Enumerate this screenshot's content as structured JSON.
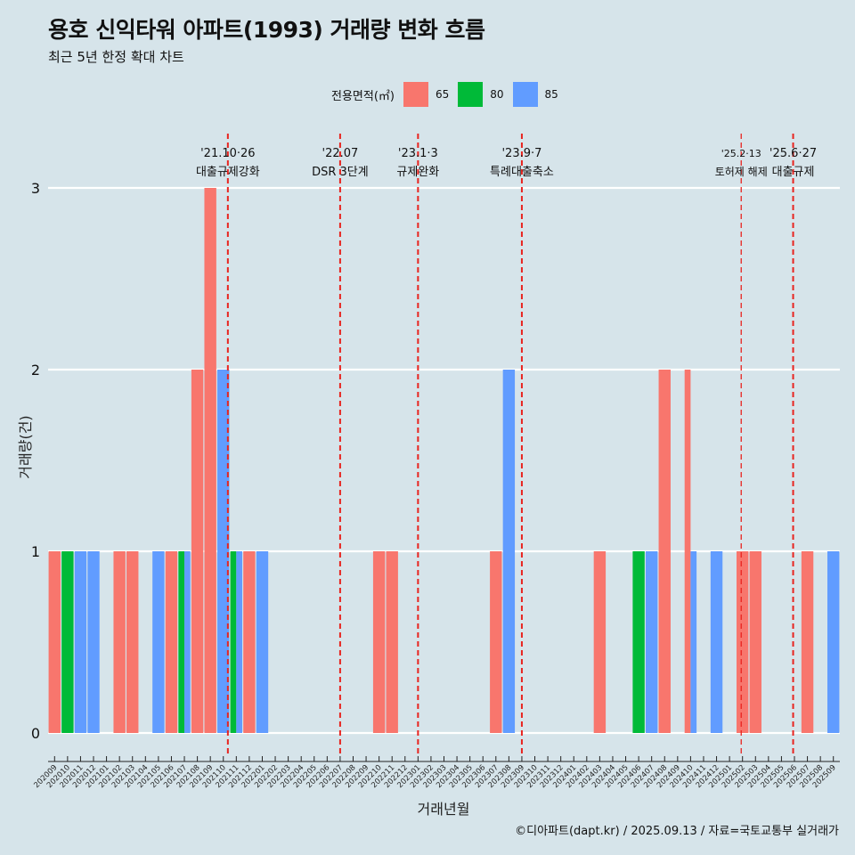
{
  "chart_data": {
    "type": "bar",
    "title": "용호 신익타워 아파트(1993) 거래량 변화 흐름",
    "subtitle": "최근 5년 한정 확대 차트",
    "xlabel": "거래년월",
    "ylabel": "거래량(건)",
    "ylim": [
      0,
      3
    ],
    "y_ticks": [
      "0",
      "1",
      "2",
      "3"
    ],
    "grid": true,
    "legend": {
      "title": "전용면적(㎡)",
      "position": "top",
      "items": [
        {
          "name": "65",
          "color": "#f8766d"
        },
        {
          "name": "80",
          "color": "#00ba38"
        },
        {
          "name": "85",
          "color": "#619cff"
        }
      ]
    },
    "categories": [
      "202009",
      "202010",
      "202011",
      "202012",
      "202101",
      "202102",
      "202103",
      "202104",
      "202105",
      "202106",
      "202107",
      "202108",
      "202109",
      "202110",
      "202111",
      "202112",
      "202201",
      "202202",
      "202203",
      "202204",
      "202205",
      "202206",
      "202207",
      "202208",
      "202209",
      "202210",
      "202211",
      "202212",
      "202301",
      "202302",
      "202303",
      "202304",
      "202305",
      "202306",
      "202307",
      "202308",
      "202309",
      "202310",
      "202311",
      "202312",
      "202401",
      "202402",
      "202403",
      "202404",
      "202405",
      "202406",
      "202407",
      "202408",
      "202409",
      "202410",
      "202411",
      "202412",
      "202501",
      "202502",
      "202503",
      "202504",
      "202505",
      "202506",
      "202507",
      "202508",
      "202509"
    ],
    "series": [
      {
        "name": "65",
        "color": "#f8766d",
        "values": [
          1,
          0,
          0,
          0,
          0,
          1,
          1,
          0,
          0,
          1,
          0,
          2,
          3,
          0,
          0,
          1,
          0,
          0,
          0,
          0,
          0,
          0,
          0,
          0,
          0,
          1,
          1,
          0,
          0,
          0,
          0,
          0,
          0,
          0,
          1,
          0,
          0,
          0,
          0,
          0,
          0,
          0,
          1,
          0,
          0,
          0,
          0,
          2,
          0,
          2,
          0,
          0,
          0,
          1,
          1,
          0,
          0,
          0,
          1,
          0,
          0
        ]
      },
      {
        "name": "80",
        "color": "#00ba38",
        "values": [
          0,
          1,
          0,
          0,
          0,
          0,
          0,
          0,
          0,
          0,
          1,
          0,
          0,
          0,
          1,
          0,
          0,
          0,
          0,
          0,
          0,
          0,
          0,
          0,
          0,
          0,
          0,
          0,
          0,
          0,
          0,
          0,
          0,
          0,
          0,
          0,
          0,
          0,
          0,
          0,
          0,
          0,
          0,
          0,
          0,
          1,
          0,
          0,
          0,
          0,
          0,
          0,
          0,
          0,
          0,
          0,
          0,
          0,
          0,
          0,
          0
        ]
      },
      {
        "name": "85",
        "color": "#619cff",
        "values": [
          0,
          0,
          1,
          1,
          0,
          0,
          0,
          0,
          1,
          0,
          1,
          0,
          0,
          2,
          1,
          0,
          1,
          0,
          0,
          0,
          0,
          0,
          0,
          0,
          0,
          0,
          0,
          0,
          0,
          0,
          0,
          0,
          0,
          0,
          0,
          2,
          0,
          0,
          0,
          0,
          0,
          0,
          0,
          0,
          0,
          0,
          1,
          0,
          0,
          1,
          0,
          1,
          0,
          0,
          0,
          0,
          0,
          0,
          0,
          0,
          1
        ]
      }
    ],
    "annotations": [
      {
        "date": "'21.10·26",
        "label": "대출규제강화",
        "x_index": 13.85
      },
      {
        "date": "'22.07",
        "label": "DSR 3단계",
        "x_index": 22.5
      },
      {
        "date": "'23.1·3",
        "label": "규제완화",
        "x_index": 28.5
      },
      {
        "date": "'23.9·7",
        "label": "특례대출축소",
        "x_index": 36.5
      },
      {
        "date": "'25.2·13",
        "label": "토허제 해제",
        "x_index": 53.4
      },
      {
        "date": "'25.6·27",
        "label": "대출규제",
        "x_index": 57.4
      }
    ]
  },
  "caption": "©디아파트(dapt.kr) / 2025.09.13 / 자료=국토교통부 실거래가"
}
